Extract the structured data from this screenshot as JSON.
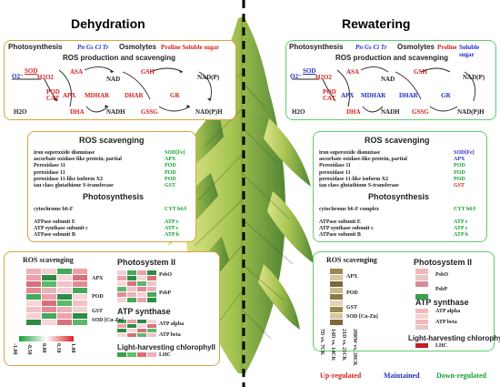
{
  "headers": {
    "left": "Dehydration",
    "right": "Rewatering"
  },
  "top_panel": {
    "photosynthesis": "Photosynthesis",
    "photo_genes": "Pn Gs Ci Tr",
    "osmolytes": "Osmolytes",
    "osmo_left": "Proline Soluble sugar",
    "osmo_right_proline": "Proline",
    "osmo_right_sugar": "Soluble sugar",
    "ros_title": "ROS production and scavenging",
    "nodes": {
      "o2": "O2⁻",
      "sod": "SOD",
      "h2o2": "H2O2",
      "asa": "ASA",
      "nad": "NAD",
      "gsh": "GSH",
      "nadp": "NAD(P)",
      "pod": "POD",
      "cat": "CAT",
      "apx": "APX",
      "mdhar": "MDHAR",
      "dhar": "DHAR",
      "gr": "GR",
      "h2o": "H2O",
      "dha": "DHA",
      "nadh": "NADH",
      "gssg": "GSSG",
      "nadph": "NAD(P)H"
    }
  },
  "middle_panel": {
    "ros_title": "ROS scavenging",
    "genes": [
      {
        "name": "iron superoxide dismutase",
        "enzyme": "SOD[Fe]"
      },
      {
        "name": "ascorbate oxidase-like protein, partial",
        "enzyme": "APX"
      },
      {
        "name": "Peroxidase 11",
        "enzyme": "POD"
      },
      {
        "name": "peroxidase 11",
        "enzyme": "POD"
      },
      {
        "name": "peroxidase 11-like isoform X2",
        "enzyme": "POD"
      },
      {
        "name": "tau class glutathione S-transferase",
        "enzyme": "GST"
      }
    ],
    "photo_title": "Photosynthesis",
    "photo_genes": [
      {
        "name": "cytochrome b6-F",
        "enzyme": "CYT b6/f"
      }
    ],
    "photo_genes_right": [
      {
        "name": "cytochrome b6-F complex",
        "enzyme": "CYT b6/f"
      }
    ],
    "atp_genes": [
      {
        "name": "ATPase subunit E",
        "enzyme": "ATP e"
      },
      {
        "name": "ATP synthase subunit c",
        "enzyme": "ATP c"
      },
      {
        "name": "ATPase subunit B",
        "enzyme": "ATP b"
      }
    ]
  },
  "bottom_panel": {
    "ros_title": "ROS scavenging",
    "ps2_title": "Photosystem II",
    "atp_title": "ATP synthase",
    "lhc_title": "Light-harvesting chlorophyll",
    "labels": {
      "apx": "APX",
      "pod": "POD",
      "gst": "GST",
      "sod": "SOD [Cu-Zn]",
      "psbo": "PsbO",
      "psbp": "PsbP",
      "atp_alpha": "ATP alpha",
      "atp_beta": "ATP beta",
      "lhc": "LHC"
    },
    "scale_ticks": [
      "-1.00",
      "-0.50",
      "0.00",
      "0.50",
      "1.00"
    ],
    "x_labels": [
      "7D vs. 7CK",
      "14D vs. 14CK",
      "21D vs. 21CK",
      "28RW vs. 28CK"
    ]
  },
  "legend": {
    "up": "Up-regulated",
    "maintained": "Maintained",
    "down": "Down-regulated"
  },
  "colors": {
    "up": "#d42020",
    "maintained": "#2030c0",
    "down": "#18a030",
    "left_border": "#e0a040",
    "right_border": "#5ecf6a"
  }
}
